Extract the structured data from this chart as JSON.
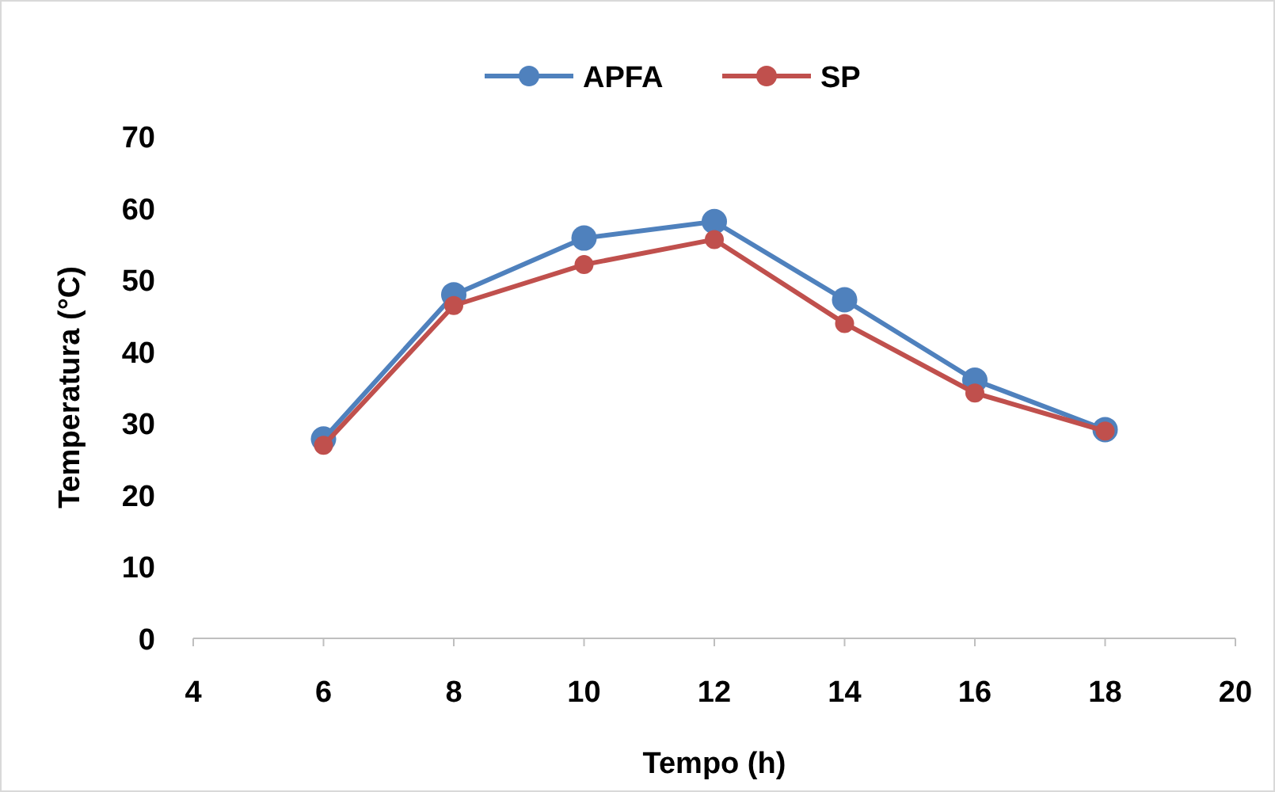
{
  "chart_data": {
    "type": "line",
    "xlabel": "Tempo (h)",
    "ylabel": "Temperatura (°C)",
    "x": [
      6,
      8,
      10,
      12,
      14,
      16,
      18
    ],
    "series": [
      {
        "name": "APFA",
        "color": "#4f81bd",
        "values": [
          27.8,
          47.9,
          55.8,
          58.1,
          47.2,
          36.0,
          29.1
        ]
      },
      {
        "name": "SP",
        "color": "#c0504d",
        "values": [
          26.9,
          46.4,
          52.1,
          55.6,
          43.9,
          34.2,
          28.9
        ]
      }
    ],
    "xlim": [
      4,
      20
    ],
    "xticks": [
      4,
      6,
      8,
      10,
      12,
      14,
      16,
      18,
      20
    ],
    "ylim": [
      0,
      70
    ],
    "yticks": [
      0,
      10,
      20,
      30,
      40,
      50,
      60,
      70
    ],
    "grid": false,
    "legend": "top",
    "marker": "circle",
    "line_style": "solid"
  }
}
